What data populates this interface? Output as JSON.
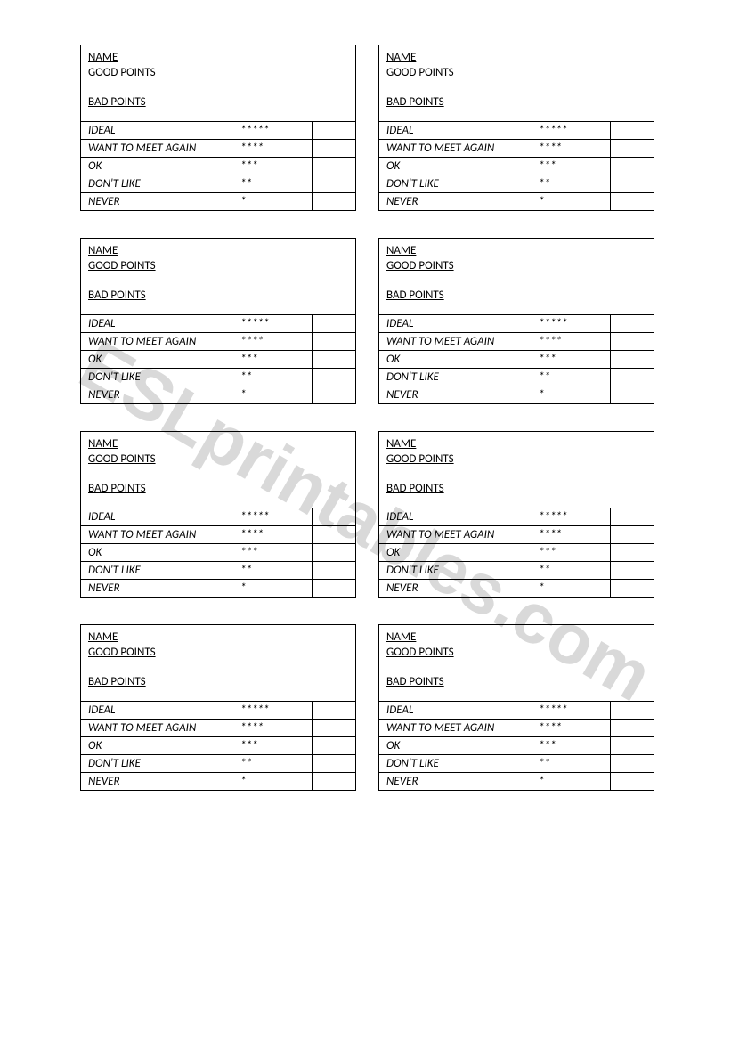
{
  "watermark_text": "ESLprintables.com",
  "labels": {
    "name": "NAME",
    "good_points": "GOOD POINTS",
    "bad_points": "BAD POINTS"
  },
  "ratings": [
    {
      "label": "IDEAL",
      "stars": "*****"
    },
    {
      "label": "WANT TO MEET AGAIN",
      "stars": "****"
    },
    {
      "label": "OK",
      "stars": "***"
    },
    {
      "label": "DON'T LIKE",
      "stars": "**"
    },
    {
      "label": "NEVER",
      "stars": "*"
    }
  ],
  "colors": {
    "background": "#ffffff",
    "text": "#000000",
    "border": "#000000",
    "watermark": "#d9d9d9"
  },
  "layout": {
    "card_count": 8,
    "columns": 2,
    "rows": 4
  }
}
